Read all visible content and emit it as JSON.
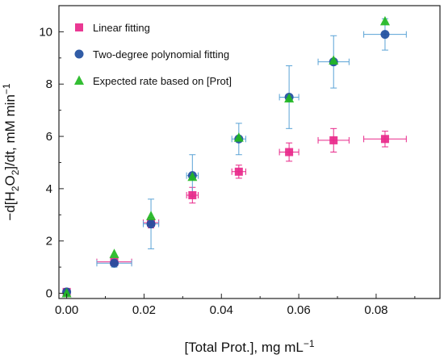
{
  "chart_data": {
    "type": "scatter",
    "xlabel": "[Total Prot.], mg mL",
    "xlabel_sup": "−1",
    "ylabel_parts": [
      "−d[H",
      "2",
      "O",
      "2",
      "]/dt, mM min",
      "−1"
    ],
    "xlim": [
      -0.002,
      0.0965
    ],
    "ylim": [
      -0.2,
      11.0
    ],
    "xticks": [
      0.0,
      0.02,
      0.04,
      0.06,
      0.08
    ],
    "xtick_labels": [
      "0.00",
      "0.02",
      "0.04",
      "0.06",
      "0.08"
    ],
    "yticks": [
      0,
      2,
      4,
      6,
      8,
      10
    ],
    "ytick_labels": [
      "0",
      "2",
      "4",
      "6",
      "8",
      "10"
    ],
    "legend_position": "top-left",
    "grid": false,
    "series": [
      {
        "name": "Linear fitting",
        "marker": "square",
        "color": "#e8288a",
        "errcolor": "#e8288a",
        "points": [
          {
            "x": 0.0,
            "y": 0.05,
            "xerr": 0.0,
            "yerr": 0.0
          },
          {
            "x": 0.0123,
            "y": 1.2,
            "xerr": 0.0045,
            "yerr": 0.1
          },
          {
            "x": 0.0218,
            "y": 2.7,
            "xerr": 0.002,
            "yerr": 0.2
          },
          {
            "x": 0.0325,
            "y": 3.75,
            "xerr": 0.0015,
            "yerr": 0.3
          },
          {
            "x": 0.0445,
            "y": 4.65,
            "xerr": 0.0018,
            "yerr": 0.25
          },
          {
            "x": 0.0575,
            "y": 5.4,
            "xerr": 0.0025,
            "yerr": 0.35
          },
          {
            "x": 0.069,
            "y": 5.85,
            "xerr": 0.004,
            "yerr": 0.45
          },
          {
            "x": 0.0823,
            "y": 5.9,
            "xerr": 0.0055,
            "yerr": 0.3
          }
        ]
      },
      {
        "name": "Two-degree polynomial fitting",
        "marker": "circle",
        "color": "#1f4e9e",
        "errcolor": "#5aa3d6",
        "points": [
          {
            "x": 0.0,
            "y": 0.05,
            "xerr": 0.0,
            "yerr": 0.0
          },
          {
            "x": 0.0123,
            "y": 1.15,
            "xerr": 0.0045,
            "yerr": 0.15
          },
          {
            "x": 0.0218,
            "y": 2.65,
            "xerr": 0.002,
            "yerr": 0.95
          },
          {
            "x": 0.0325,
            "y": 4.5,
            "xerr": 0.0015,
            "yerr": 0.8
          },
          {
            "x": 0.0445,
            "y": 5.9,
            "xerr": 0.0018,
            "yerr": 0.6
          },
          {
            "x": 0.0575,
            "y": 7.5,
            "xerr": 0.0025,
            "yerr": 1.2
          },
          {
            "x": 0.069,
            "y": 8.85,
            "xerr": 0.004,
            "yerr": 1.0
          },
          {
            "x": 0.0823,
            "y": 9.9,
            "xerr": 0.0055,
            "yerr": 0.6
          }
        ]
      },
      {
        "name": "Expected rate based on [Prot]",
        "marker": "triangle",
        "color": "#22b822",
        "errcolor": "#22b822",
        "points": [
          {
            "x": 0.0,
            "y": 0.0
          },
          {
            "x": 0.0123,
            "y": 1.5
          },
          {
            "x": 0.0218,
            "y": 2.95
          },
          {
            "x": 0.0325,
            "y": 4.45
          },
          {
            "x": 0.0445,
            "y": 5.95
          },
          {
            "x": 0.0575,
            "y": 7.45
          },
          {
            "x": 0.069,
            "y": 8.9
          },
          {
            "x": 0.0823,
            "y": 10.4
          }
        ]
      }
    ]
  }
}
